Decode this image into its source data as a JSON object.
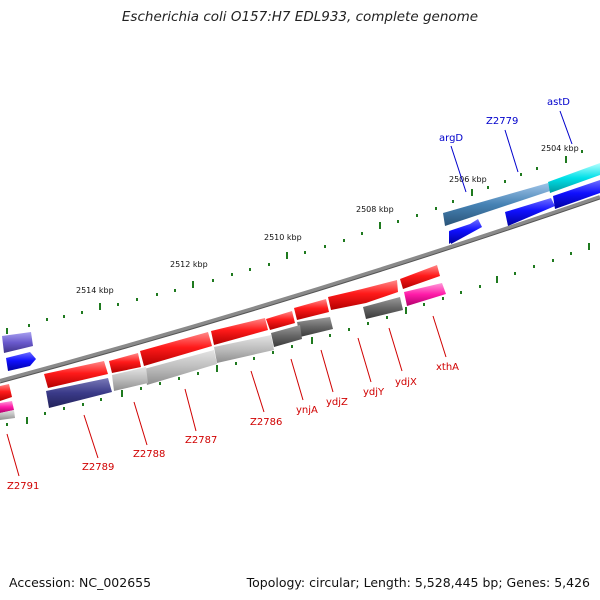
{
  "title": "Escherichia coli O157:H7 EDL933, complete genome",
  "accession": "Accession: NC_002655",
  "summary": "Topology: circular; Length: 5,528,445 bp; Genes: 5,426",
  "colors": {
    "backbone": "#8a8a8a",
    "ticks": "#1f7a1f",
    "red_label": "#d00000",
    "blue_label": "#0000cc"
  },
  "tick_labels": [
    "2504 kbp",
    "2506 kbp",
    "2508 kbp",
    "2510 kbp",
    "2512 kbp",
    "2514 kbp"
  ],
  "gene_labels": [
    {
      "text": "astD",
      "color": "blue"
    },
    {
      "text": "Z2779",
      "color": "blue"
    },
    {
      "text": "argD",
      "color": "blue"
    },
    {
      "text": "xthA",
      "color": "red"
    },
    {
      "text": "ydjX",
      "color": "red"
    },
    {
      "text": "ydjY",
      "color": "red"
    },
    {
      "text": "ydjZ",
      "color": "red"
    },
    {
      "text": "ynjA",
      "color": "red"
    },
    {
      "text": "Z2786",
      "color": "red"
    },
    {
      "text": "Z2787",
      "color": "red"
    },
    {
      "text": "Z2788",
      "color": "red"
    },
    {
      "text": "Z2789",
      "color": "red"
    },
    {
      "text": "Z2791",
      "color": "red"
    }
  ]
}
